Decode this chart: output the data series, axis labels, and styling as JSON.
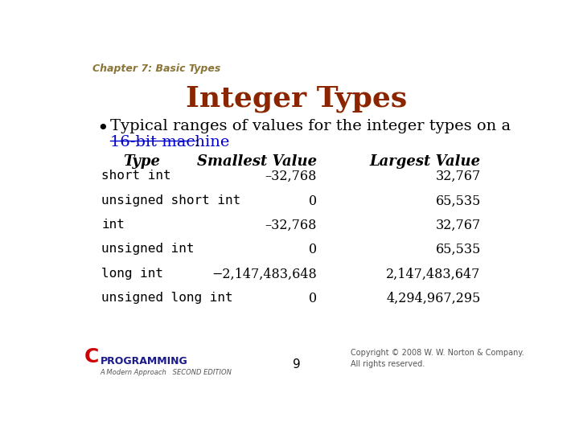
{
  "bg_color": "#ffffff",
  "chapter_text": "Chapter 7: Basic Types",
  "chapter_color": "#8B7536",
  "title": "Integer Types",
  "title_color": "#8B2500",
  "bullet_line1": "Typical ranges of values for the integer types on a",
  "bullet_line2_link": "16-bit machine",
  "bullet_line2_colon": ":",
  "link_color": "#0000cc",
  "col_headers": [
    "Type",
    "Smallest Value",
    "Largest Value"
  ],
  "rows": [
    [
      "short int",
      "–32,768",
      "32,767"
    ],
    [
      "unsigned short int",
      "0",
      "65,535"
    ],
    [
      "int",
      "–32,768",
      "32,767"
    ],
    [
      "unsigned int",
      "0",
      "65,535"
    ],
    [
      "long int",
      "−2,147,483,648",
      "2,147,483,647"
    ],
    [
      "unsigned long int",
      "0",
      "4,294,967,295"
    ]
  ],
  "page_number": "9",
  "copyright": "Copyright © 2008 W. W. Norton & Company.\nAll rights reserved.",
  "footer_color": "#555555"
}
